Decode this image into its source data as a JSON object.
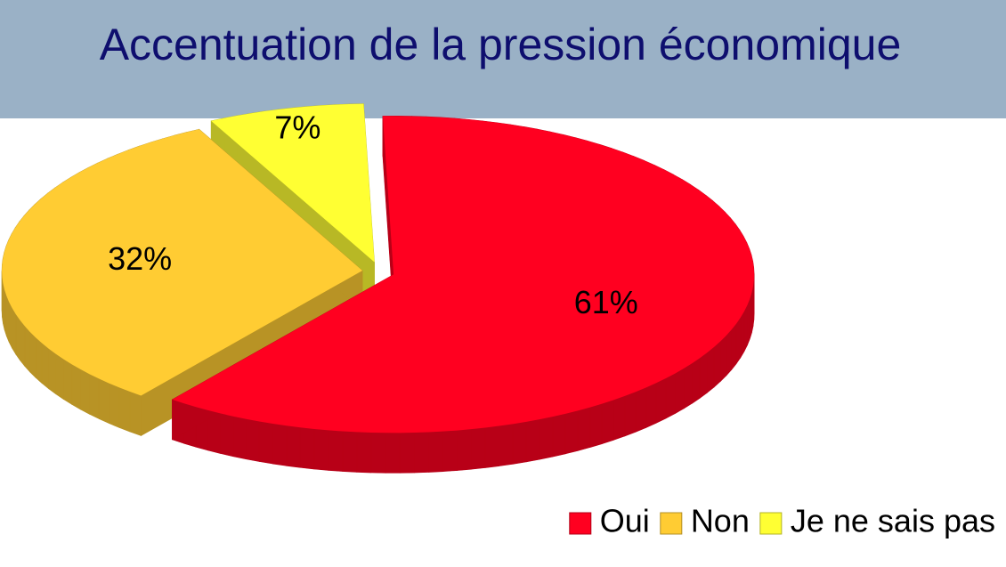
{
  "chart_data": {
    "type": "pie",
    "title": "Accentuation de la pression économique",
    "categories": [
      "Oui",
      "Non",
      "Je ne sais pas"
    ],
    "values": [
      61,
      32,
      7
    ],
    "value_labels": [
      "61%",
      "32%",
      "7%"
    ],
    "colors": [
      "#ff0020",
      "#ffcc33",
      "#ffff33"
    ],
    "legend": "bottom-right"
  }
}
